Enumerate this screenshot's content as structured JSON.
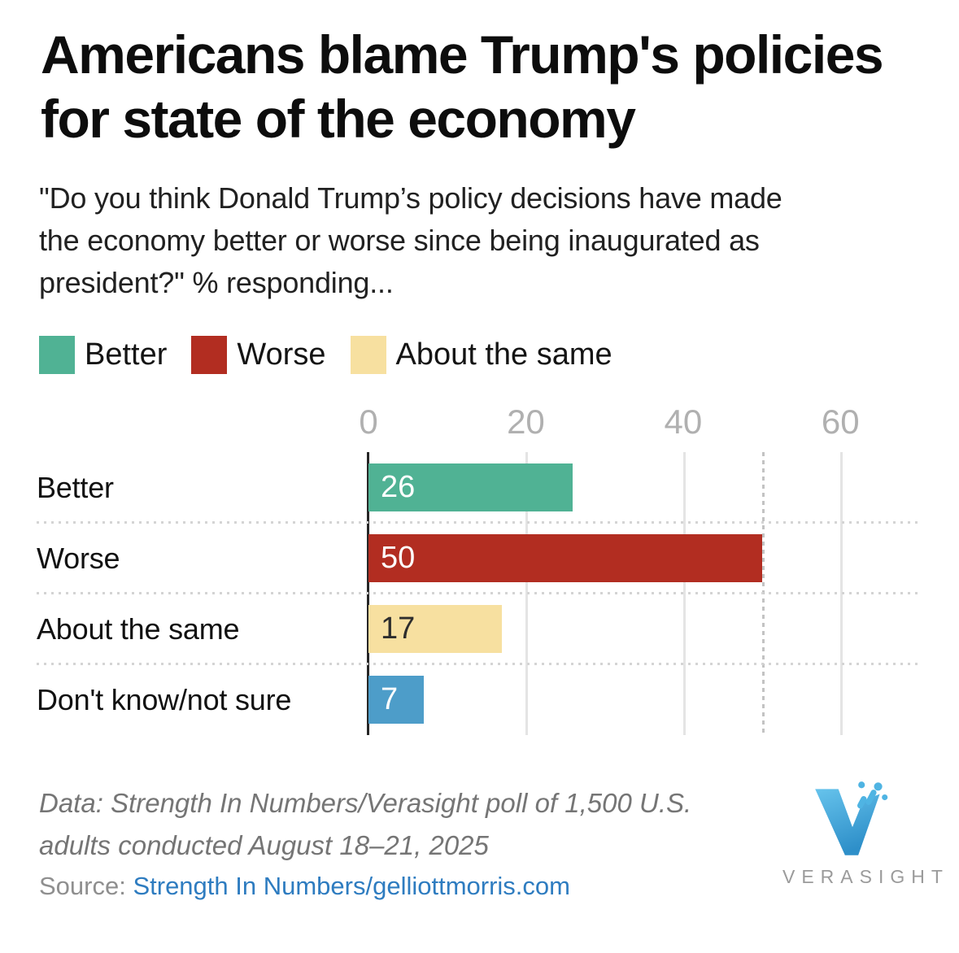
{
  "header": {
    "title": "Americans blame Trump's policies\nfor state of the economy",
    "subtitle": "\"Do you think Donald Trump’s policy decisions have made\nthe economy better or worse since being inaugurated as\npresident?\" % responding..."
  },
  "legend": {
    "items": [
      {
        "label": "Better",
        "color": "#50B294"
      },
      {
        "label": "Worse",
        "color": "#B22D21"
      },
      {
        "label": "About the same",
        "color": "#F7E0A0"
      }
    ]
  },
  "chart_data": {
    "type": "bar",
    "orientation": "horizontal",
    "categories": [
      "Better",
      "Worse",
      "About the same",
      "Don't know/not sure"
    ],
    "values": [
      26,
      50,
      17,
      7
    ],
    "bar_colors": [
      "#50B294",
      "#B22D21",
      "#F7E0A0",
      "#4D9DC9"
    ],
    "value_label_colors": [
      "#ffffff",
      "#ffffff",
      "#2d2d2d",
      "#ffffff"
    ],
    "value_labels_position": "inside-bar-left",
    "x_ticks": [
      0,
      20,
      40,
      60
    ],
    "xlim": [
      0,
      70
    ],
    "reference_line_x": 50,
    "grid": "vertical solid gridlines at ticks, dotted vertical line at 50, dotted row separators",
    "legend_position": "top",
    "xlabel": "",
    "ylabel": ""
  },
  "footer": {
    "note": "Data: Strength In Numbers/Verasight poll of 1,500 U.S.\nadults conducted August 18–21, 2025",
    "source_label": "Source: ",
    "source_link": "Strength In Numbers/gelliottmorris.com"
  },
  "logo": {
    "wordmark": "VERASIGHT",
    "icon_color_light": "#66C3EC",
    "icon_color_dark": "#2E8FC9"
  }
}
